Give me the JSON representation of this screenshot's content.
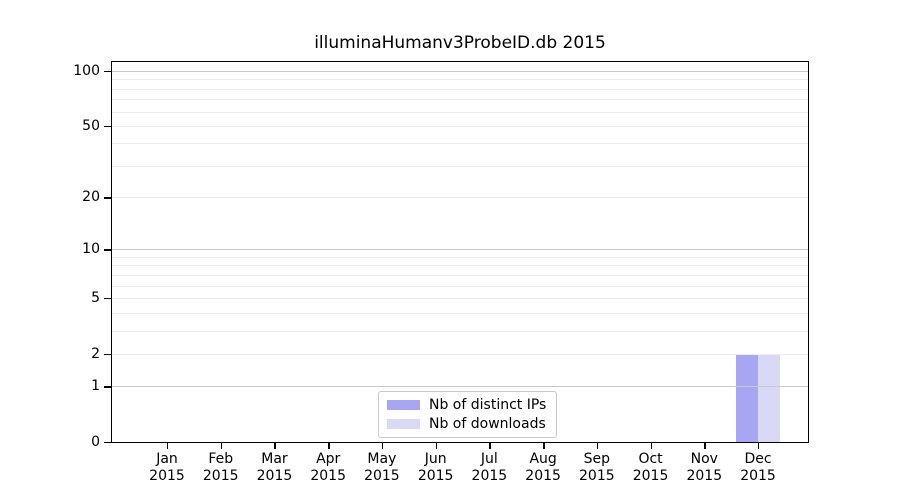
{
  "chart_data": {
    "type": "bar",
    "title": "illuminaHumanv3ProbeID.db 2015",
    "categories": [
      "Jan",
      "Feb",
      "Mar",
      "Apr",
      "May",
      "Jun",
      "Jul",
      "Aug",
      "Sep",
      "Oct",
      "Nov",
      "Dec"
    ],
    "year_label": "2015",
    "series": [
      {
        "name": "Nb of distinct IPs",
        "color": "#a6a6f2",
        "values": [
          0,
          0,
          0,
          0,
          0,
          0,
          0,
          0,
          0,
          0,
          0,
          2
        ]
      },
      {
        "name": "Nb of downloads",
        "color": "#d9d9f6",
        "values": [
          0,
          0,
          0,
          0,
          0,
          0,
          0,
          0,
          0,
          0,
          0,
          2
        ]
      }
    ],
    "y_scale": "log1p",
    "y_ticks": [
      0,
      1,
      2,
      5,
      10,
      20,
      50,
      100
    ],
    "y_axis_max": 112,
    "major_gridlines": [
      1,
      10,
      100
    ],
    "minor_gridlines": [
      2,
      3,
      4,
      5,
      6,
      7,
      8,
      9,
      20,
      30,
      40,
      50,
      60,
      70,
      80,
      90
    ],
    "legend": {
      "position": "bottom-center",
      "entries": [
        "Nb of distinct IPs",
        "Nb of downloads"
      ]
    },
    "colors": {
      "grid_major": "#c8c8c8",
      "grid_minor": "#ececec",
      "spine": "#000000",
      "text": "#000000",
      "background": "#ffffff"
    },
    "grid": "on",
    "gridlines_above_bars": true
  }
}
